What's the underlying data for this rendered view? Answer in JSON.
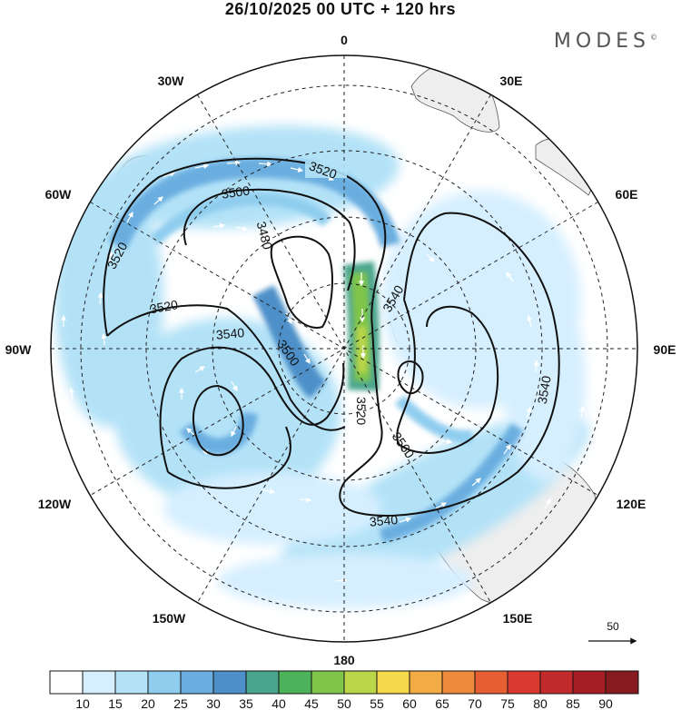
{
  "title": "26/10/2025  00 UTC  + 120 hrs",
  "brand": {
    "name": "MODES",
    "mark": "©"
  },
  "longitude_labels": [
    "0",
    "30E",
    "60E",
    "90E",
    "120E",
    "150E",
    "180",
    "150W",
    "120W",
    "90W",
    "60W",
    "30W"
  ],
  "contours": {
    "field": "geopotential height",
    "interval": 20,
    "labels": [
      {
        "value": "3520",
        "id": "north-arc"
      },
      {
        "value": "3500",
        "id": "north-inner"
      },
      {
        "value": "3480",
        "id": "center-low"
      },
      {
        "value": "3520",
        "id": "west-arc"
      },
      {
        "value": "3520",
        "id": "west-lower"
      },
      {
        "value": "3540",
        "id": "west-ring"
      },
      {
        "value": "3500",
        "id": "center-south"
      },
      {
        "value": "3540",
        "id": "east-ridge"
      },
      {
        "value": "3520",
        "id": "center-trough"
      },
      {
        "value": "3560",
        "id": "east-high"
      },
      {
        "value": "3540",
        "id": "east-outer"
      },
      {
        "value": "3540",
        "id": "south-arc"
      }
    ]
  },
  "wind_reference": {
    "value": "50",
    "icon": "arrow-right-icon"
  },
  "colorbar": {
    "ticks": [
      "10",
      "15",
      "20",
      "25",
      "30",
      "35",
      "40",
      "45",
      "50",
      "55",
      "60",
      "65",
      "70",
      "75",
      "80",
      "85",
      "90"
    ],
    "colors": [
      "#ffffff",
      "#d6efff",
      "#b3e2f7",
      "#8fcdef",
      "#6aaee0",
      "#4d90c9",
      "#4aa58d",
      "#4db35a",
      "#7ec54a",
      "#bcd64a",
      "#f5d84b",
      "#f2ab45",
      "#ee8a3b",
      "#e65f33",
      "#d83a30",
      "#c22a2c",
      "#a51e26",
      "#871a1e"
    ]
  },
  "colors": {
    "land": "#eeeeee",
    "coast": "#555555",
    "grid": "#222222"
  }
}
